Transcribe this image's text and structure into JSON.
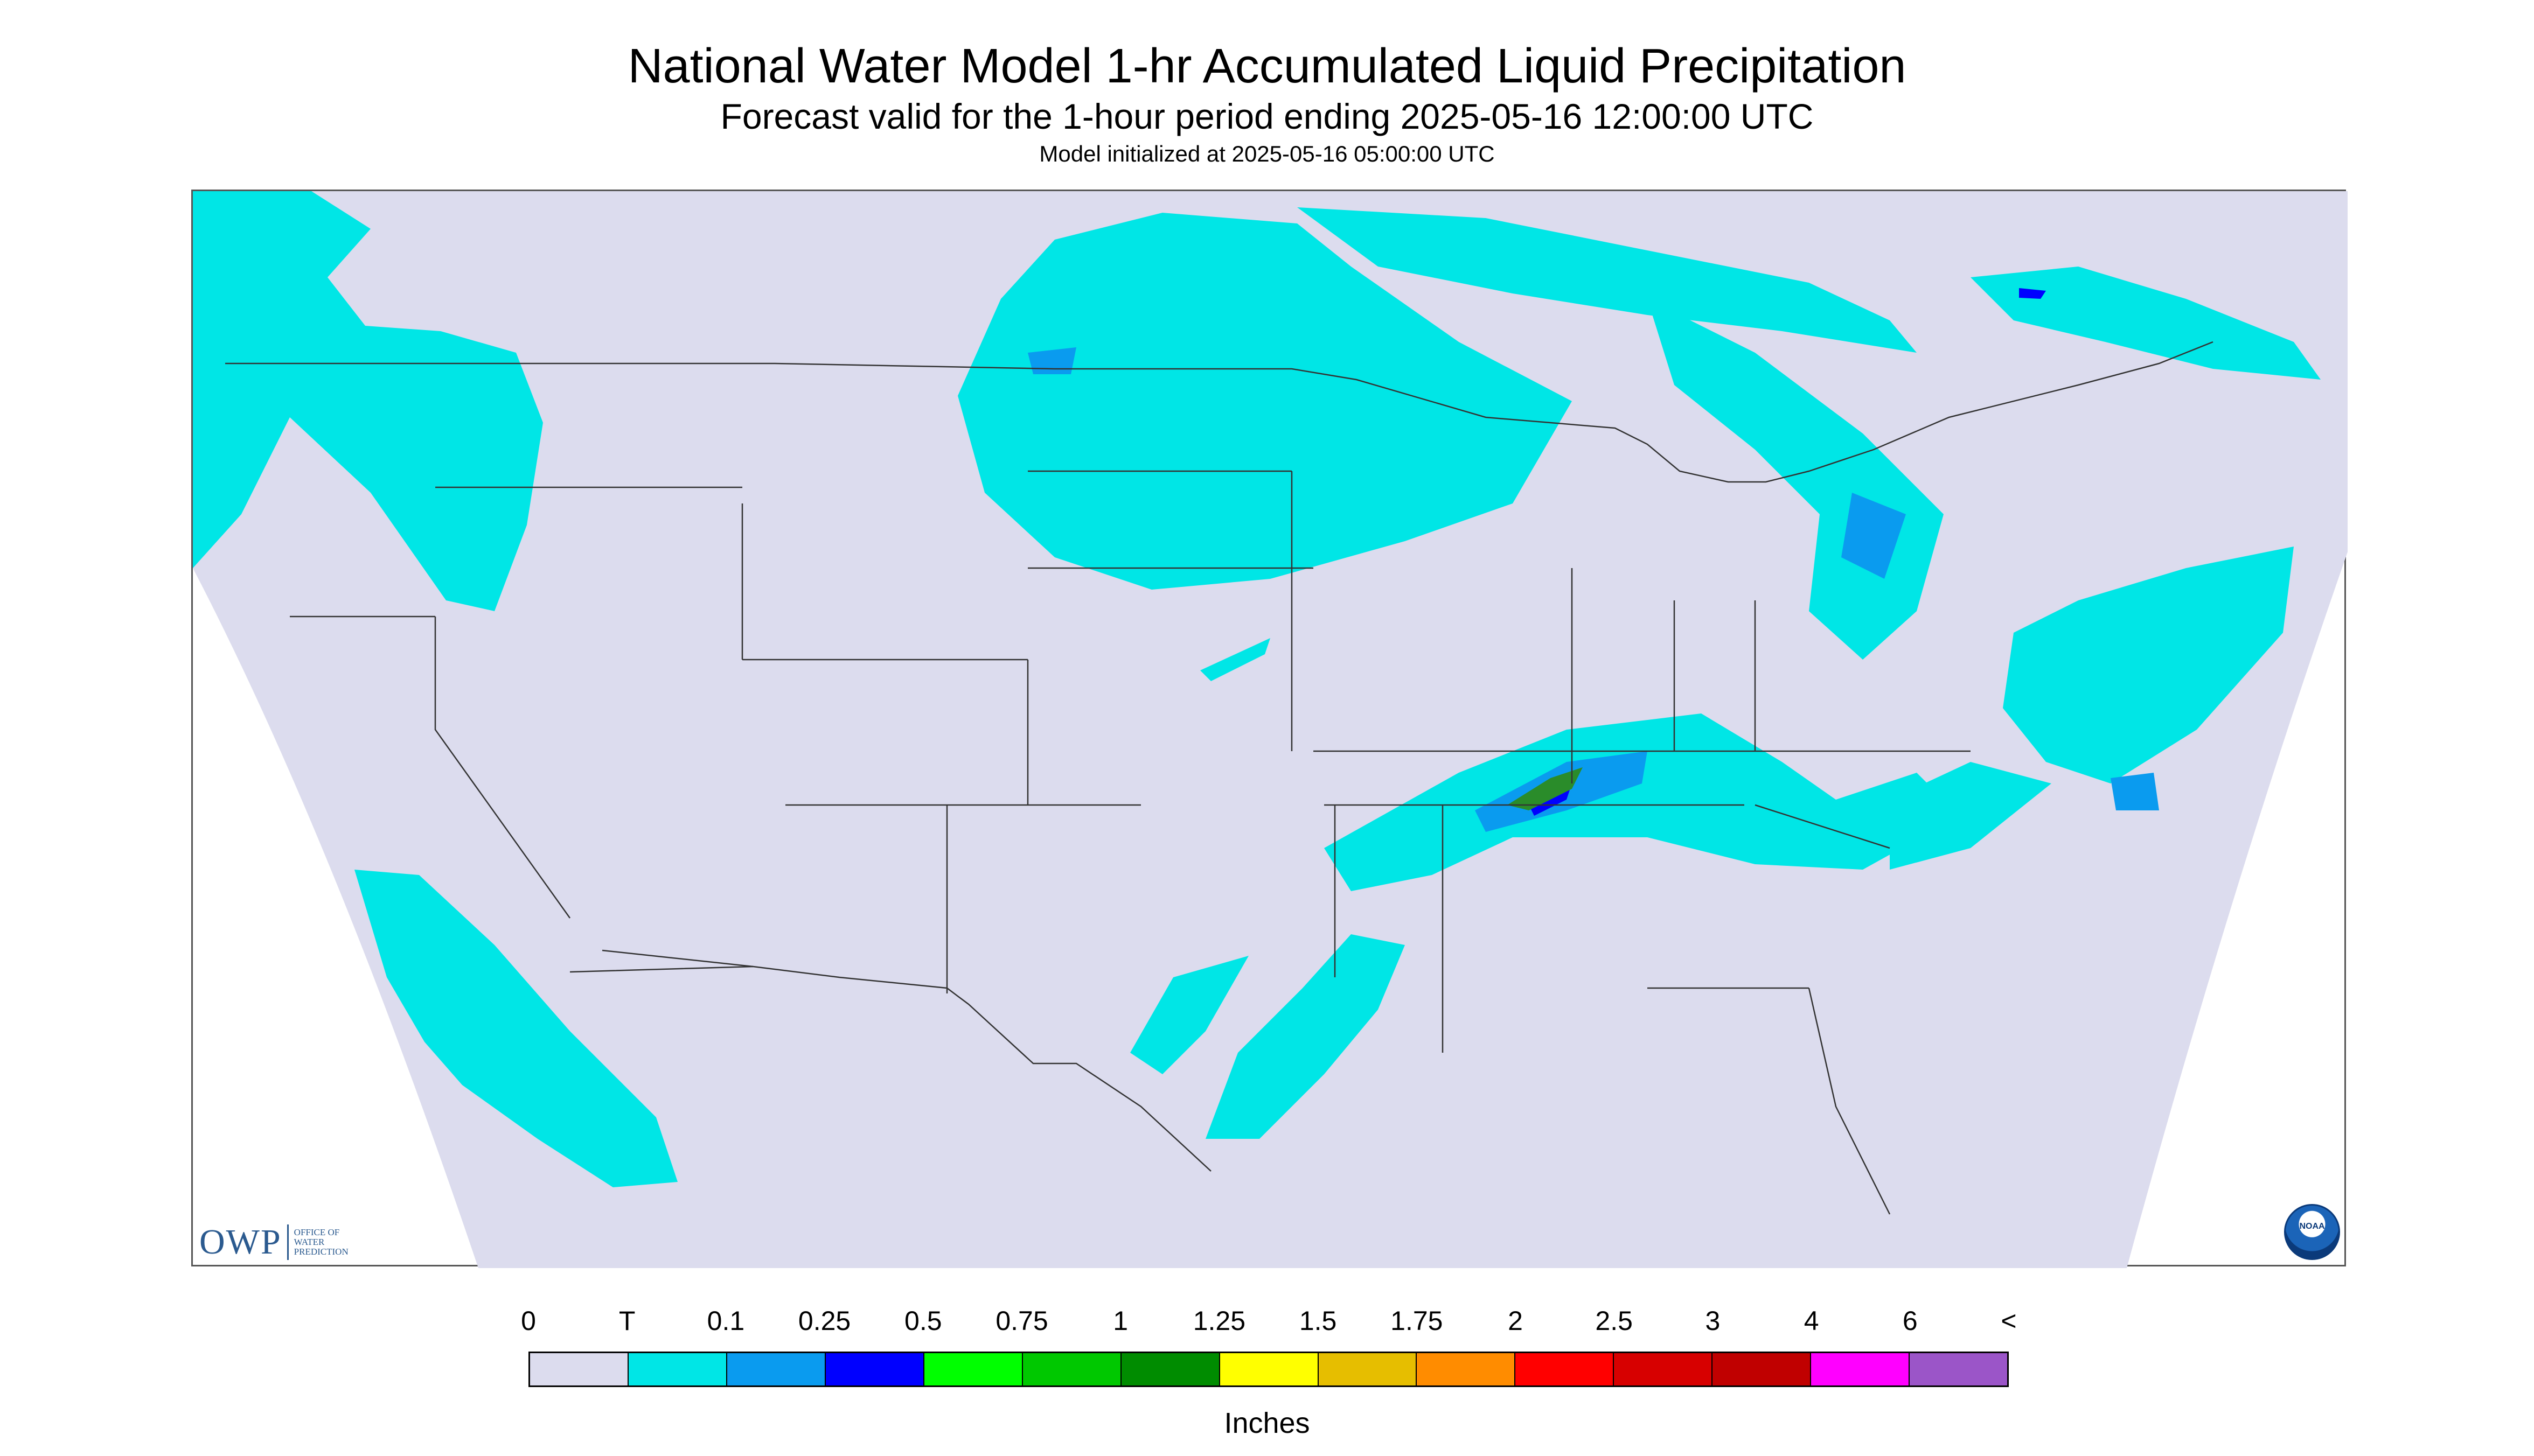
{
  "header": {
    "title": "National Water Model 1-hr Accumulated Liquid Precipitation",
    "subtitle": "Forecast valid for the 1-hour period ending 2025-05-16 12:00:00 UTC",
    "init": "Model initialized at 2025-05-16 05:00:00 UTC"
  },
  "map": {
    "region": "CONUS",
    "background_color": "#dcdcee",
    "light_precip_color": "#00e6e6",
    "moderate_precip_color": "#0a9bef",
    "heavy_precip_color": "#0000ff",
    "max_precip_color": "#2a8c2a"
  },
  "logos": {
    "owp_main": "OWP",
    "owp_sub": [
      "OFFICE OF",
      "WATER",
      "PREDICTION"
    ],
    "noaa_label": "NOAA"
  },
  "legend": {
    "ticks": [
      "0",
      "T",
      "0.1",
      "0.25",
      "0.5",
      "0.75",
      "1",
      "1.25",
      "1.5",
      "1.75",
      "2",
      "2.5",
      "3",
      "4",
      "6",
      "<"
    ],
    "colors": [
      "#dcdcee",
      "#00e6e6",
      "#0a9bef",
      "#0000ff",
      "#00ff00",
      "#00c800",
      "#008c00",
      "#ffff00",
      "#e6be00",
      "#ff8c00",
      "#ff0000",
      "#d70000",
      "#c00000",
      "#ff00ff",
      "#9b55c8"
    ],
    "units": "Inches"
  }
}
